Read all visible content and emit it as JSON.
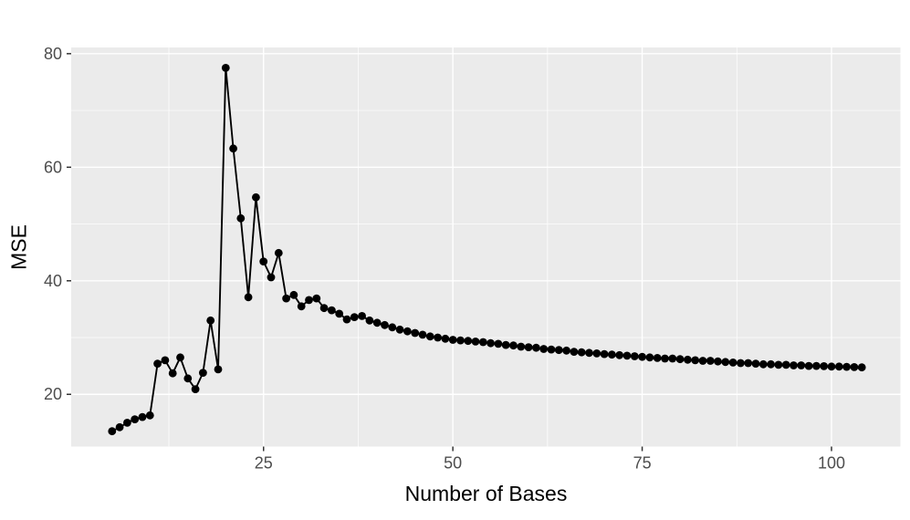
{
  "figure": {
    "background": "#FFFFFF",
    "panel_background": "#EBEBEB",
    "grid_color": "#FFFFFF",
    "line_color": "#000000",
    "point_color": "#000000",
    "tick_color": "#333333",
    "tick_label_color": "#4D4D4D",
    "axis_title_color": "#000000"
  },
  "chart_data": {
    "type": "line",
    "title": "",
    "xlabel": "Number of Bases",
    "ylabel": "MSE",
    "legend": "none",
    "grid": "major+minor",
    "marker": "filled-circle",
    "theme": "ggplot2-grey",
    "xlim": [
      -0.4,
      109.1
    ],
    "ylim": [
      10.8,
      81.1
    ],
    "x_ticks_major": [
      25,
      50,
      75,
      100
    ],
    "x_ticks_minor": [
      12.5,
      37.5,
      62.5,
      87.5
    ],
    "y_ticks_major": [
      20,
      40,
      60,
      80
    ],
    "y_ticks_minor": [
      30,
      50,
      70
    ],
    "x": [
      5,
      6,
      7,
      8,
      9,
      10,
      11,
      12,
      13,
      14,
      15,
      16,
      17,
      18,
      19,
      20,
      21,
      22,
      23,
      24,
      25,
      26,
      27,
      28,
      29,
      30,
      31,
      32,
      33,
      34,
      35,
      36,
      37,
      38,
      39,
      40,
      41,
      42,
      43,
      44,
      45,
      46,
      47,
      48,
      49,
      50,
      51,
      52,
      53,
      54,
      55,
      56,
      57,
      58,
      59,
      60,
      61,
      62,
      63,
      64,
      65,
      66,
      67,
      68,
      69,
      70,
      71,
      72,
      73,
      74,
      75,
      76,
      77,
      78,
      79,
      80,
      81,
      82,
      83,
      84,
      85,
      86,
      87,
      88,
      89,
      90,
      91,
      92,
      93,
      94,
      95,
      96,
      97,
      98,
      99,
      100,
      101,
      102,
      103,
      104
    ],
    "y": [
      13.5,
      14.2,
      15.0,
      15.6,
      16.0,
      16.3,
      25.4,
      26.0,
      23.7,
      26.5,
      22.8,
      20.9,
      23.8,
      33.0,
      24.4,
      77.5,
      63.3,
      51.0,
      37.1,
      54.7,
      43.4,
      40.6,
      44.9,
      36.9,
      37.5,
      35.5,
      36.6,
      36.9,
      35.2,
      34.8,
      34.2,
      33.2,
      33.6,
      33.8,
      33.0,
      32.6,
      32.2,
      31.8,
      31.4,
      31.1,
      30.8,
      30.5,
      30.2,
      30.0,
      29.8,
      29.6,
      29.5,
      29.4,
      29.3,
      29.2,
      29.0,
      28.9,
      28.7,
      28.6,
      28.4,
      28.3,
      28.2,
      28.0,
      27.9,
      27.8,
      27.7,
      27.5,
      27.4,
      27.3,
      27.2,
      27.1,
      27.0,
      26.9,
      26.8,
      26.7,
      26.6,
      26.5,
      26.4,
      26.3,
      26.3,
      26.2,
      26.1,
      26.0,
      25.9,
      25.9,
      25.8,
      25.7,
      25.6,
      25.5,
      25.5,
      25.4,
      25.3,
      25.3,
      25.2,
      25.2,
      25.1,
      25.1,
      25.0,
      25.0,
      24.95,
      24.9,
      24.9,
      24.85,
      24.8,
      24.75
    ]
  }
}
